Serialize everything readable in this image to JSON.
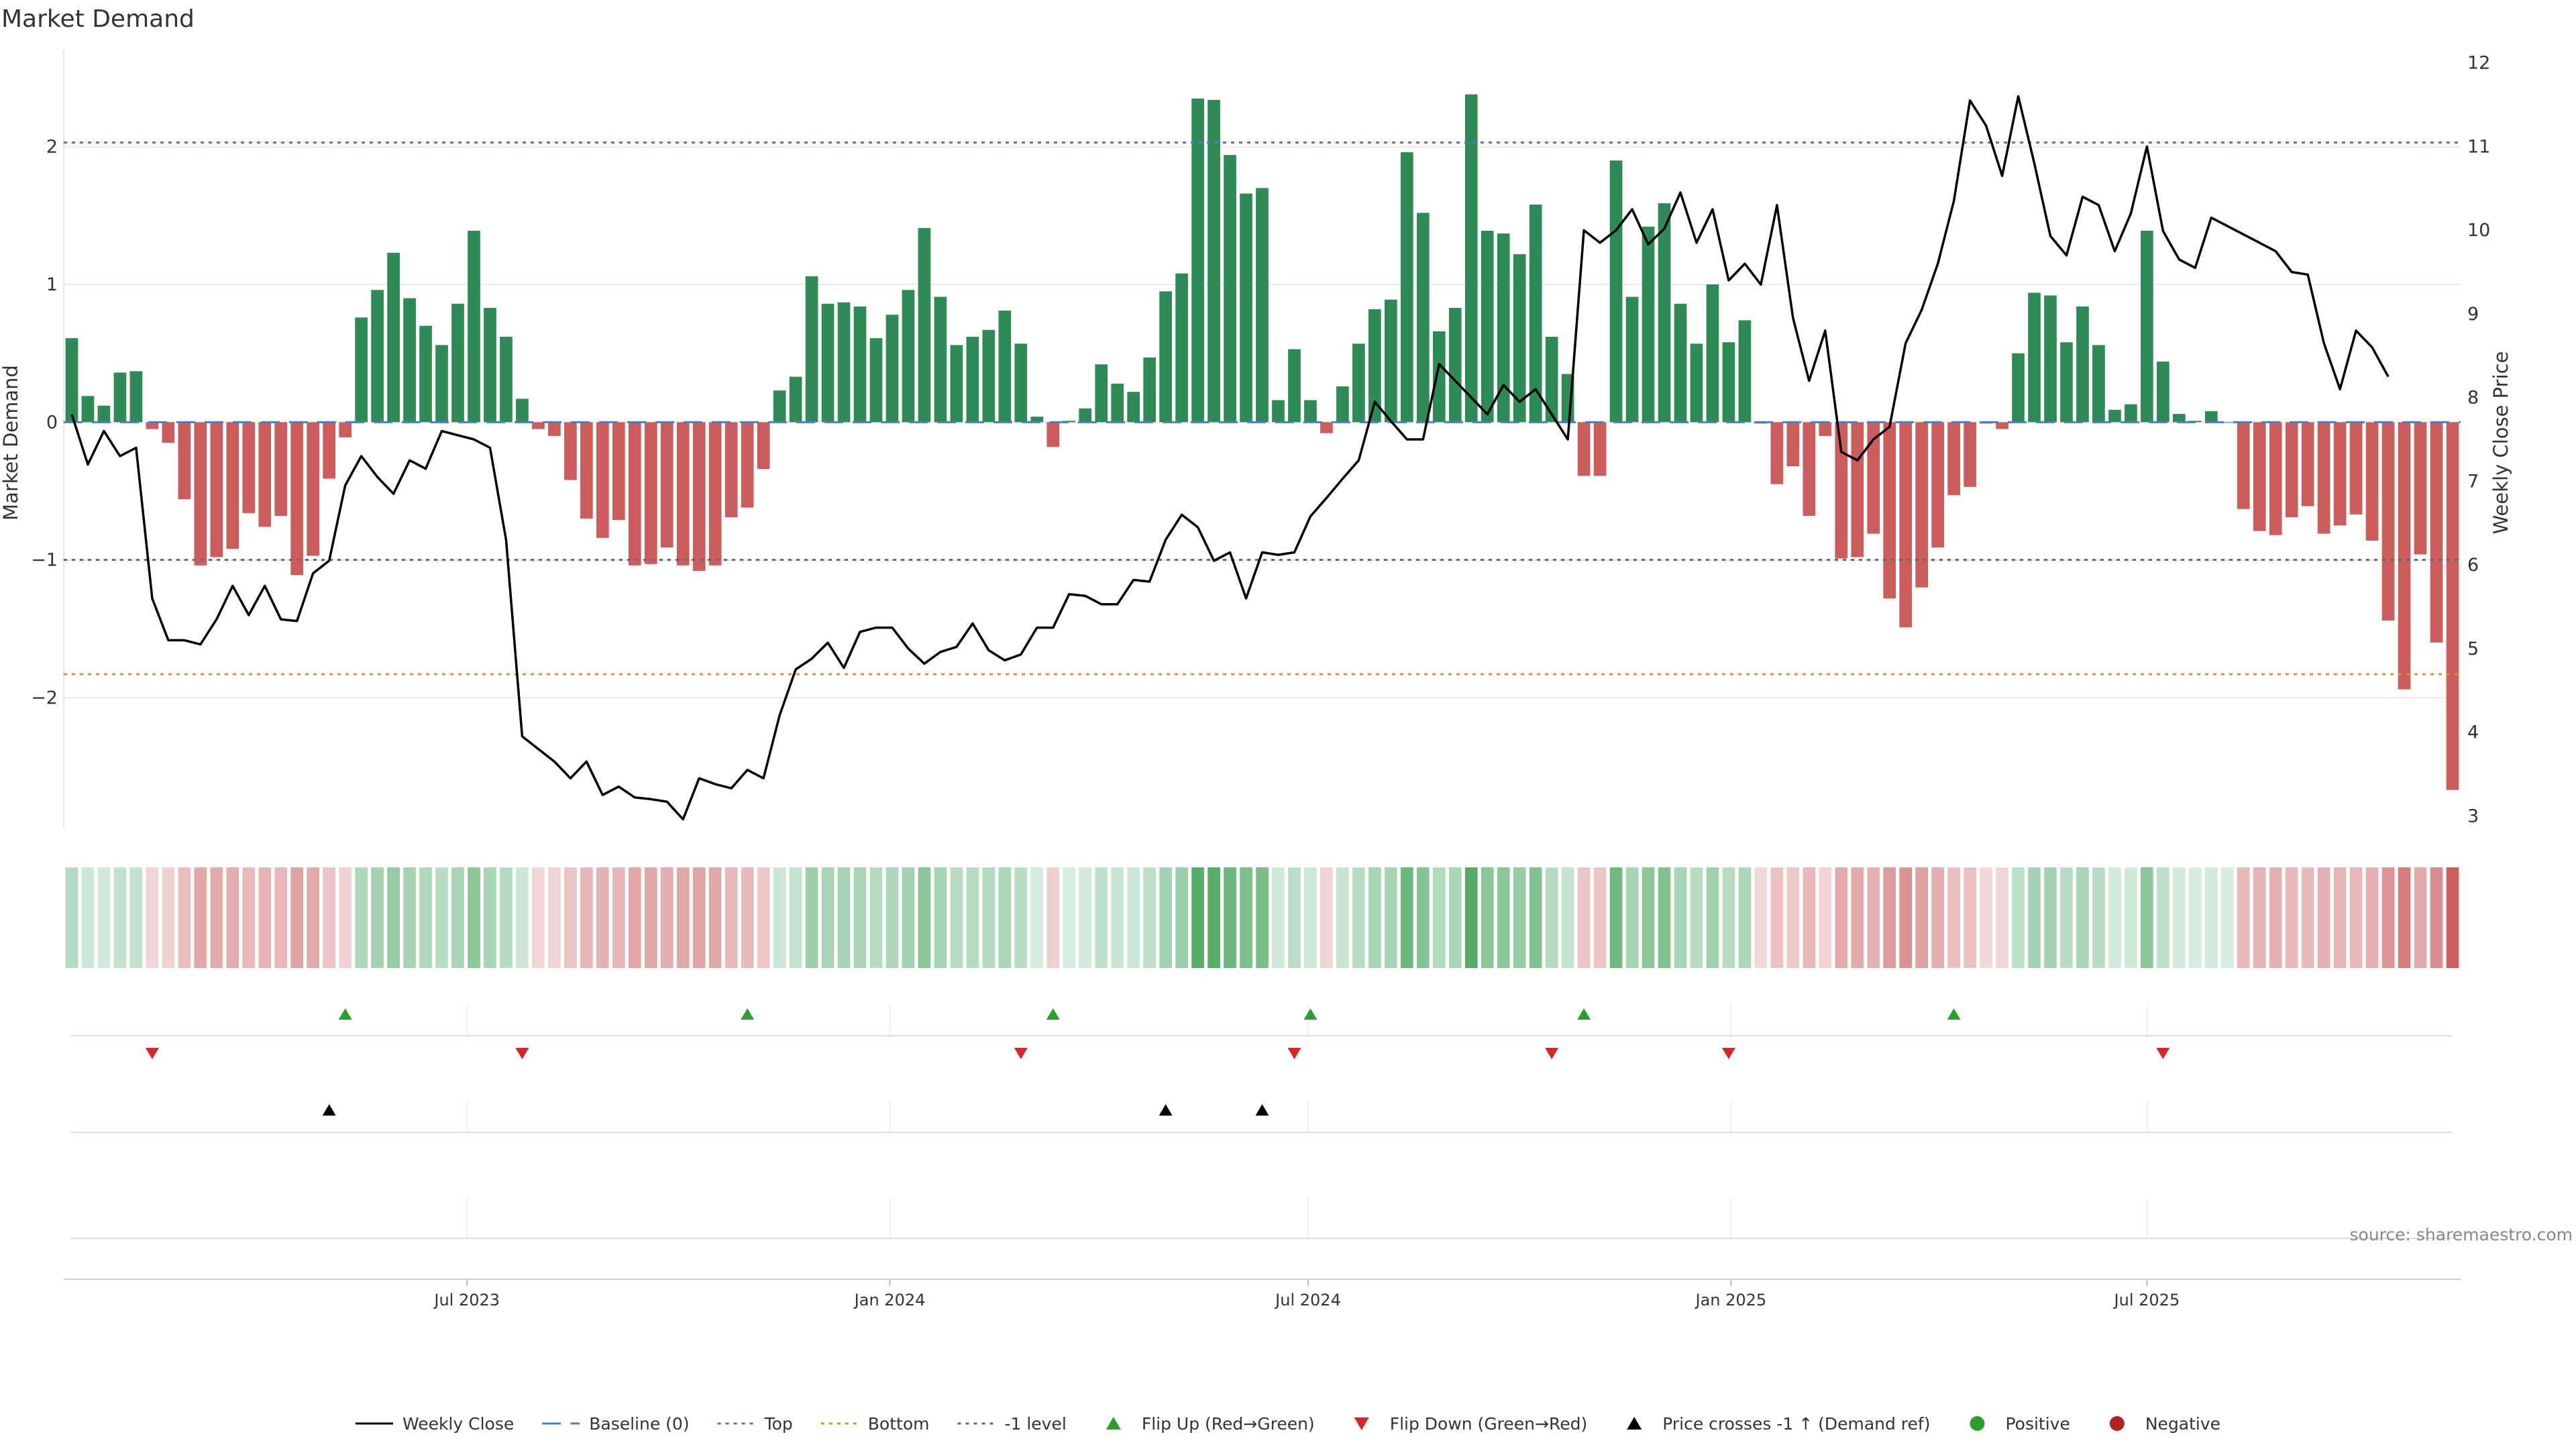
{
  "chart_data": {
    "type": "bar",
    "title": "Market Demand",
    "ylabel": "Market Demand",
    "y2label": "Weekly Close Price",
    "ylim": [
      -2.95,
      2.7
    ],
    "y2lim": [
      2.85,
      12.15
    ],
    "yticks": [
      -2,
      -1,
      0,
      1,
      2
    ],
    "y2ticks": [
      3,
      4,
      5,
      6,
      7,
      8,
      9,
      10,
      11,
      12
    ],
    "grid": true,
    "top_level": 2.03,
    "bottom_level": -1.83,
    "minus1_level": -1,
    "x_start": "2023-01-10",
    "week_days": 7,
    "x_ticks": [
      {
        "label": "Jul 2023",
        "date": "2023-07-01"
      },
      {
        "label": "Jan 2024",
        "date": "2024-01-01"
      },
      {
        "label": "Jul 2024",
        "date": "2024-07-01"
      },
      {
        "label": "Jan 2025",
        "date": "2025-01-01"
      },
      {
        "label": "Jul 2025",
        "date": "2025-07-01"
      }
    ],
    "series": [
      {
        "name": "Market Demand",
        "values": [
          0.61,
          0.19,
          0.12,
          0.36,
          0.37,
          -0.05,
          -0.15,
          -0.56,
          -1.04,
          -0.98,
          -0.92,
          -0.66,
          -0.76,
          -0.68,
          -1.11,
          -0.97,
          -0.41,
          -0.11,
          0.76,
          0.96,
          1.23,
          0.9,
          0.7,
          0.56,
          0.86,
          1.39,
          0.83,
          0.62,
          0.17,
          -0.05,
          -0.1,
          -0.42,
          -0.7,
          -0.84,
          -0.71,
          -1.04,
          -1.03,
          -0.91,
          -1.04,
          -1.08,
          -1.04,
          -0.69,
          -0.62,
          -0.34,
          0.23,
          0.33,
          1.06,
          0.86,
          0.87,
          0.84,
          0.61,
          0.78,
          0.96,
          1.41,
          0.91,
          0.56,
          0.62,
          0.67,
          0.81,
          0.57,
          0.04,
          -0.18,
          0.01,
          0.1,
          0.42,
          0.28,
          0.22,
          0.47,
          0.95,
          1.08,
          2.35,
          2.34,
          1.94,
          1.66,
          1.7,
          0.16,
          0.53,
          0.16,
          -0.08,
          0.26,
          0.57,
          0.82,
          0.89,
          1.96,
          1.52,
          0.66,
          0.83,
          2.38,
          1.39,
          1.37,
          1.22,
          1.58,
          0.62,
          0.35,
          -0.39,
          -0.39,
          1.9,
          0.91,
          1.42,
          1.59,
          0.86,
          0.57,
          1.0,
          0.58,
          0.74,
          -0.01,
          -0.45,
          -0.32,
          -0.68,
          -0.1,
          -0.99,
          -0.98,
          -0.81,
          -1.28,
          -1.49,
          -1.2,
          -0.91,
          -0.53,
          -0.47,
          -0.01,
          -0.05,
          0.5,
          0.94,
          0.92,
          0.58,
          0.84,
          0.56,
          0.09,
          0.13,
          1.39,
          0.44,
          0.06,
          0.01,
          0.08,
          0.0,
          -0.63,
          -0.79,
          -0.82,
          -0.69,
          -0.61,
          -0.81,
          -0.75,
          -0.67,
          -0.86,
          -1.44,
          -1.94,
          -0.96,
          -1.6,
          -2.67
        ]
      },
      {
        "name": "Weekly Close",
        "values": [
          7.8,
          7.2,
          7.6,
          7.3,
          7.4,
          5.6,
          5.1,
          5.1,
          5.05,
          5.35,
          5.75,
          5.4,
          5.75,
          5.35,
          5.33,
          5.9,
          6.05,
          6.95,
          7.3,
          7.05,
          6.85,
          7.25,
          7.15,
          7.6,
          7.55,
          7.5,
          7.4,
          6.3,
          3.95,
          3.8,
          3.65,
          3.45,
          3.65,
          3.25,
          3.35,
          3.22,
          3.2,
          3.17,
          2.96,
          3.45,
          3.38,
          3.33,
          3.55,
          3.45,
          4.2,
          4.75,
          4.88,
          5.07,
          4.77,
          5.2,
          5.25,
          5.25,
          5.0,
          4.82,
          4.96,
          5.02,
          5.3,
          4.98,
          4.86,
          4.93,
          5.25,
          5.25,
          5.65,
          5.63,
          5.53,
          5.53,
          5.82,
          5.8,
          6.3,
          6.6,
          6.45,
          6.05,
          6.15,
          5.6,
          6.15,
          6.12,
          6.15,
          6.58,
          6.8,
          7.03,
          7.25,
          7.95,
          7.72,
          7.5,
          7.5,
          8.4,
          8.2,
          8.0,
          7.8,
          8.15,
          7.95,
          8.1,
          7.8,
          7.5,
          10.0,
          9.85,
          10.0,
          10.25,
          9.83,
          10.02,
          10.45,
          9.85,
          10.25,
          9.4,
          9.6,
          9.35,
          10.3,
          8.95,
          8.2,
          8.8,
          7.35,
          7.25,
          7.5,
          7.65,
          8.65,
          9.05,
          9.6,
          10.35,
          11.55,
          11.25,
          10.65,
          11.6,
          10.8,
          9.93,
          9.7,
          10.4,
          10.3,
          9.75,
          10.2,
          11.0,
          9.99,
          9.65,
          9.55,
          10.15,
          10.05,
          9.95,
          9.85,
          9.75,
          9.5,
          9.47,
          8.65,
          8.1,
          8.8,
          8.6,
          8.25
        ]
      }
    ]
  },
  "heat_strip": {
    "green_dark": "#4aa65c",
    "green_light": "#d6ece0",
    "red_dark": "#cc5e5e",
    "red_light": "#f1d8d8"
  },
  "signals": {
    "flip_up_weeks": [
      17,
      42,
      61,
      77,
      94,
      117
    ],
    "flip_down_weeks": [
      5,
      28,
      59,
      76,
      92,
      103,
      130
    ],
    "price_cross_weeks": [
      16,
      68,
      74
    ]
  },
  "colors": {
    "positive": "#2e8b57",
    "negative": "#cd5c5c",
    "close_line": "#000000",
    "top_line": "#6a6ad8",
    "bottom_line": "#d4932c",
    "minus1_line": "#666666",
    "flip_up": "#2ca02c",
    "flip_down": "#d62728"
  },
  "source": "source: sharemaestro.com",
  "legend": [
    {
      "label": "Weekly Close",
      "kind": "line",
      "color": "#000000",
      "dash": ""
    },
    {
      "label": "Baseline (0)",
      "kind": "line",
      "color": "#4a7fc1",
      "dash": "28,14"
    },
    {
      "label": "Top",
      "kind": "line",
      "color": "#6a6ad8",
      "dash": "5,7"
    },
    {
      "label": "Bottom",
      "kind": "line",
      "color": "#d4932c",
      "dash": "5,7"
    },
    {
      "label": "-1 level",
      "kind": "line",
      "color": "#666666",
      "dash": "5,7"
    },
    {
      "label": "Flip Up (Red→Green)",
      "kind": "tri-up",
      "color": "#2ca02c"
    },
    {
      "label": "Flip Down (Green→Red)",
      "kind": "tri-down",
      "color": "#d62728"
    },
    {
      "label": "Price crosses -1 ↑ (Demand ref)",
      "kind": "tri-up",
      "color": "#000000"
    },
    {
      "label": "Positive",
      "kind": "dot",
      "color": "#2ca02c"
    },
    {
      "label": "Negative",
      "kind": "dot",
      "color": "#b22222"
    }
  ]
}
